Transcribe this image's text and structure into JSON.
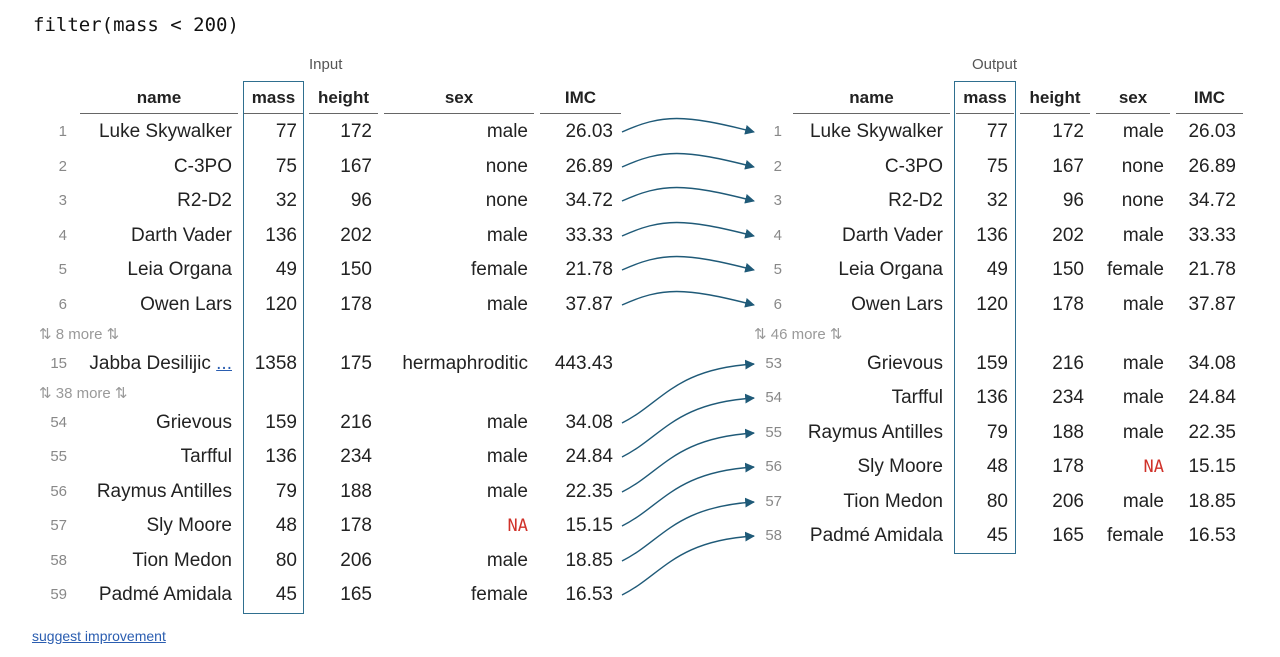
{
  "code": "filter(mass < 200)",
  "input": {
    "caption": "Input",
    "columns": [
      "name",
      "mass",
      "height",
      "sex",
      "IMC"
    ],
    "rows": [
      {
        "idx": "1",
        "name": "Luke Skywalker",
        "mass": "77",
        "height": "172",
        "sex": "male",
        "imc": "26.03"
      },
      {
        "idx": "2",
        "name": "C-3PO",
        "mass": "75",
        "height": "167",
        "sex": "none",
        "imc": "26.89"
      },
      {
        "idx": "3",
        "name": "R2-D2",
        "mass": "32",
        "height": "96",
        "sex": "none",
        "imc": "34.72"
      },
      {
        "idx": "4",
        "name": "Darth Vader",
        "mass": "136",
        "height": "202",
        "sex": "male",
        "imc": "33.33"
      },
      {
        "idx": "5",
        "name": "Leia Organa",
        "mass": "49",
        "height": "150",
        "sex": "female",
        "imc": "21.78"
      },
      {
        "idx": "6",
        "name": "Owen Lars",
        "mass": "120",
        "height": "178",
        "sex": "male",
        "imc": "37.87"
      },
      {
        "more": "⇅ 8 more ⇅"
      },
      {
        "idx": "15",
        "name": "Jabba Desilijic",
        "ellipsis": "...",
        "mass": "1358",
        "height": "175",
        "sex": "hermaphroditic",
        "imc": "443.43"
      },
      {
        "more": "⇅ 38 more ⇅"
      },
      {
        "idx": "54",
        "name": "Grievous",
        "mass": "159",
        "height": "216",
        "sex": "male",
        "imc": "34.08"
      },
      {
        "idx": "55",
        "name": "Tarfful",
        "mass": "136",
        "height": "234",
        "sex": "male",
        "imc": "24.84"
      },
      {
        "idx": "56",
        "name": "Raymus Antilles",
        "mass": "79",
        "height": "188",
        "sex": "male",
        "imc": "22.35"
      },
      {
        "idx": "57",
        "name": "Sly Moore",
        "mass": "48",
        "height": "178",
        "sex": "NA",
        "sex_na": true,
        "imc": "15.15"
      },
      {
        "idx": "58",
        "name": "Tion Medon",
        "mass": "80",
        "height": "206",
        "sex": "male",
        "imc": "18.85"
      },
      {
        "idx": "59",
        "name": "Padmé Amidala",
        "mass": "45",
        "height": "165",
        "sex": "female",
        "imc": "16.53"
      }
    ]
  },
  "output": {
    "caption": "Output",
    "columns": [
      "name",
      "mass",
      "height",
      "sex",
      "IMC"
    ],
    "rows": [
      {
        "idx": "1",
        "name": "Luke Skywalker",
        "mass": "77",
        "height": "172",
        "sex": "male",
        "imc": "26.03"
      },
      {
        "idx": "2",
        "name": "C-3PO",
        "mass": "75",
        "height": "167",
        "sex": "none",
        "imc": "26.89"
      },
      {
        "idx": "3",
        "name": "R2-D2",
        "mass": "32",
        "height": "96",
        "sex": "none",
        "imc": "34.72"
      },
      {
        "idx": "4",
        "name": "Darth Vader",
        "mass": "136",
        "height": "202",
        "sex": "male",
        "imc": "33.33"
      },
      {
        "idx": "5",
        "name": "Leia Organa",
        "mass": "49",
        "height": "150",
        "sex": "female",
        "imc": "21.78"
      },
      {
        "idx": "6",
        "name": "Owen Lars",
        "mass": "120",
        "height": "178",
        "sex": "male",
        "imc": "37.87"
      },
      {
        "more": "⇅ 46 more ⇅"
      },
      {
        "idx": "53",
        "name": "Grievous",
        "mass": "159",
        "height": "216",
        "sex": "male",
        "imc": "34.08"
      },
      {
        "idx": "54",
        "name": "Tarfful",
        "mass": "136",
        "height": "234",
        "sex": "male",
        "imc": "24.84"
      },
      {
        "idx": "55",
        "name": "Raymus Antilles",
        "mass": "79",
        "height": "188",
        "sex": "male",
        "imc": "22.35"
      },
      {
        "idx": "56",
        "name": "Sly Moore",
        "mass": "48",
        "height": "178",
        "sex": "NA",
        "sex_na": true,
        "imc": "15.15"
      },
      {
        "idx": "57",
        "name": "Tion Medon",
        "mass": "80",
        "height": "206",
        "sex": "male",
        "imc": "18.85"
      },
      {
        "idx": "58",
        "name": "Padmé Amidala",
        "mass": "45",
        "height": "165",
        "sex": "female",
        "imc": "16.53"
      }
    ]
  },
  "links": [
    [
      0,
      0
    ],
    [
      1,
      1
    ],
    [
      2,
      2
    ],
    [
      3,
      3
    ],
    [
      4,
      4
    ],
    [
      5,
      5
    ],
    [
      9,
      7
    ],
    [
      10,
      8
    ],
    [
      11,
      9
    ],
    [
      12,
      10
    ],
    [
      13,
      11
    ],
    [
      14,
      12
    ]
  ],
  "suggest_link": "suggest improvement",
  "colors": {
    "highlight": "#2f6f8f",
    "arrow": "#1f5a78",
    "na": "#d0322a"
  }
}
